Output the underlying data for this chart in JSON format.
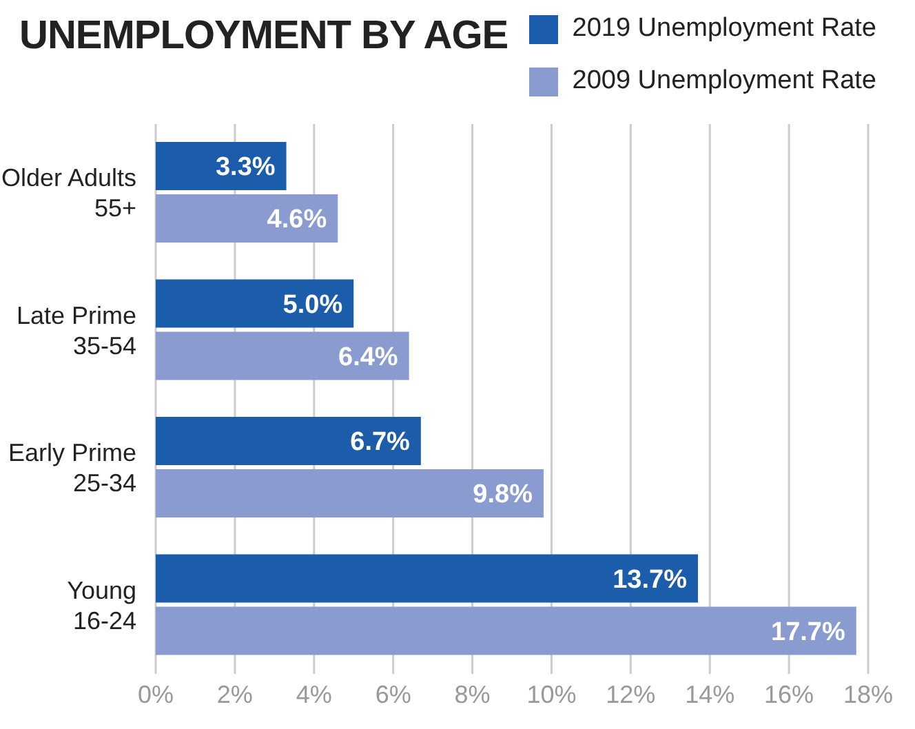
{
  "chart_data": {
    "type": "bar",
    "orientation": "horizontal",
    "title": "UNEMPLOYMENT BY AGE",
    "categories": [
      "Older Adults\n55+",
      "Late Prime\n35-54",
      "Early Prime\n25-34",
      "Young\n16-24"
    ],
    "series": [
      {
        "name": "2019 Unemployment Rate",
        "color": "#1c5dab",
        "values": [
          3.3,
          5.0,
          6.7,
          13.7
        ],
        "value_labels": [
          "3.3%",
          "5.0%",
          "6.7%",
          "13.7%"
        ]
      },
      {
        "name": "2009 Unemployment Rate",
        "color": "#8a9bd0",
        "values": [
          4.6,
          6.4,
          9.8,
          17.7
        ],
        "value_labels": [
          "4.6%",
          "6.4%",
          "9.8%",
          "17.7%"
        ]
      }
    ],
    "xlim": [
      0,
      18
    ],
    "xticks": [
      {
        "value": 0,
        "label": "0%"
      },
      {
        "value": 2,
        "label": "2%"
      },
      {
        "value": 4,
        "label": "4%"
      },
      {
        "value": 6,
        "label": "6%"
      },
      {
        "value": 8,
        "label": "8%"
      },
      {
        "value": 10,
        "label": "10%"
      },
      {
        "value": 12,
        "label": "12%"
      },
      {
        "value": 14,
        "label": "14%"
      },
      {
        "value": 16,
        "label": "16%"
      },
      {
        "value": 18,
        "label": "18%"
      }
    ],
    "grid": "x",
    "legend": "top right"
  }
}
